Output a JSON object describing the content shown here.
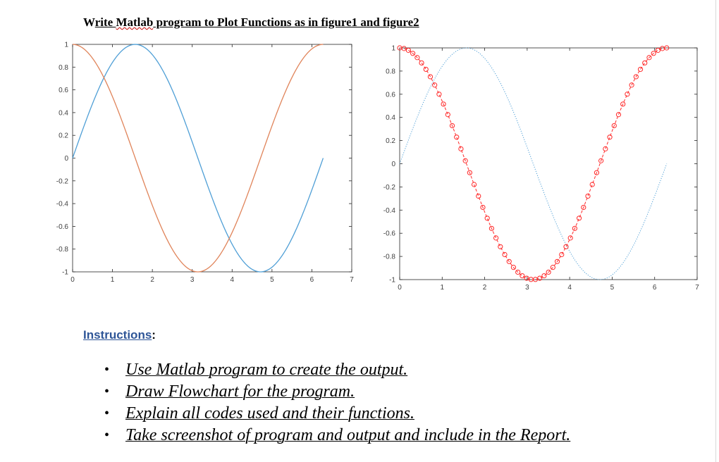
{
  "heading": {
    "pre": "W",
    "u1": "rite ",
    "matlab": "Matlab",
    "u2": " program to Plot Functions as in figure1 and figure2"
  },
  "instructions": {
    "label": "Instructions",
    "colon": ":",
    "bullet": "•",
    "items": [
      "Use Matlab program to create the output.",
      "Draw Flowchart for the program.",
      "Explain all codes used and their functions.",
      "Take screenshot of program and output and include in the Report."
    ]
  },
  "chart_data": [
    {
      "type": "line",
      "xlim": [
        0,
        7
      ],
      "ylim": [
        -1,
        1
      ],
      "xticks": [
        "0",
        "1",
        "2",
        "3",
        "4",
        "5",
        "6",
        "7"
      ],
      "yticks": [
        "-1",
        "-0.8",
        "-0.6",
        "-0.4",
        "-0.2",
        "0",
        "0.2",
        "0.4",
        "0.6",
        "0.8",
        "1"
      ],
      "series": [
        {
          "function": "sin(x)",
          "x_range": [
            0,
            6.2832
          ],
          "color": "#4f9fd6",
          "style": "solid"
        },
        {
          "function": "cos(x)",
          "x_range": [
            0,
            6.2832
          ],
          "color": "#e0845a",
          "style": "solid"
        }
      ]
    },
    {
      "type": "line",
      "xlim": [
        0,
        7
      ],
      "ylim": [
        -1,
        1
      ],
      "xticks": [
        "0",
        "1",
        "2",
        "3",
        "4",
        "5",
        "6",
        "7"
      ],
      "yticks": [
        "-1",
        "-0.8",
        "-0.6",
        "-0.4",
        "-0.2",
        "0",
        "0.2",
        "0.4",
        "0.6",
        "0.8",
        "1"
      ],
      "series": [
        {
          "function": "sin(x)",
          "x_range": [
            0,
            6.2832
          ],
          "color": "#4f9fd6",
          "style": "dotted"
        },
        {
          "function": "cos(x)",
          "x_range": [
            0,
            6.2832
          ],
          "color": "#ff2a2a",
          "style": "dashed",
          "marker": "o"
        }
      ]
    }
  ]
}
